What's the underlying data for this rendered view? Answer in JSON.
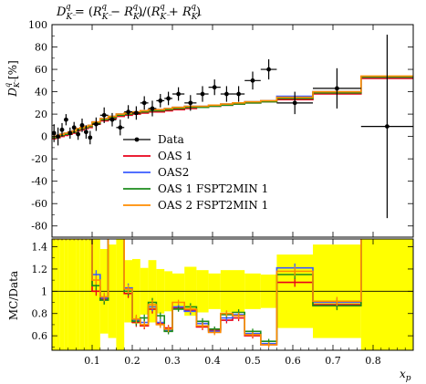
{
  "chart_data": [
    {
      "panel": "main",
      "type": "line",
      "title": "D^q_{K^-} = (R^q_{K^-} − R^q_{K^+}) / (R^q_{K^-} + R^q_{K^+})",
      "title_parts": {
        "lhs": "D",
        "eq": " = (",
        "r1": "R",
        "minus": " − ",
        "r2": "R",
        "mid": ")/(",
        "r3": "R",
        "plus": " + ",
        "r4": "R",
        "end": ")"
      },
      "ylabel": "D^q_{K^-} [%]",
      "ylabel_parts": {
        "base": "D",
        "unit": " [%]"
      },
      "xlim": [
        0.0,
        0.9
      ],
      "ylim": [
        -90,
        100
      ],
      "y_ticks": [
        -80,
        -60,
        -40,
        -20,
        0,
        20,
        40,
        60,
        80,
        100
      ],
      "x_bins": [
        0.0,
        0.01,
        0.02,
        0.03,
        0.04,
        0.05,
        0.06,
        0.07,
        0.08,
        0.09,
        0.1,
        0.12,
        0.14,
        0.16,
        0.18,
        0.2,
        0.22,
        0.24,
        0.26,
        0.28,
        0.3,
        0.33,
        0.36,
        0.39,
        0.42,
        0.45,
        0.48,
        0.52,
        0.56,
        0.65,
        0.77,
        0.9
      ],
      "data": {
        "name": "Data",
        "x": [
          0.005,
          0.015,
          0.025,
          0.035,
          0.045,
          0.055,
          0.065,
          0.075,
          0.085,
          0.095,
          0.11,
          0.13,
          0.15,
          0.17,
          0.19,
          0.21,
          0.23,
          0.25,
          0.27,
          0.29,
          0.315,
          0.345,
          0.375,
          0.405,
          0.435,
          0.465,
          0.5,
          0.54,
          0.605,
          0.71,
          0.835
        ],
        "y": [
          3,
          0,
          6,
          15,
          3,
          8,
          2,
          10,
          4,
          -1,
          11,
          19,
          15,
          8,
          22,
          21,
          30,
          25,
          32,
          34,
          38,
          30,
          38,
          44,
          38,
          38,
          50,
          60,
          30,
          43,
          9
        ],
        "yerr": [
          8,
          8,
          6,
          5,
          5,
          5,
          5,
          6,
          6,
          6,
          6,
          7,
          6,
          7,
          6,
          6,
          6,
          7,
          6,
          6,
          6,
          7,
          7,
          7,
          7,
          7,
          8,
          9,
          10,
          18,
          82
        ]
      },
      "series": [
        {
          "name": "OAS 1",
          "color": "#e8001a",
          "values": [
            -2,
            -1,
            0,
            1,
            2,
            3,
            5,
            6,
            7,
            8,
            11,
            14,
            16,
            18,
            19,
            20,
            21,
            22,
            22,
            23,
            24,
            25,
            26,
            27,
            28,
            29,
            30,
            31,
            33,
            38,
            52
          ]
        },
        {
          "name": "OAS2",
          "color": "#3a5bff",
          "values": [
            0,
            1,
            2,
            3,
            4,
            5,
            7,
            8,
            9,
            10,
            13,
            16,
            18,
            20,
            21,
            22,
            23,
            24,
            24,
            25,
            26,
            27,
            27,
            28,
            29,
            30,
            31,
            32,
            36,
            40,
            53
          ]
        },
        {
          "name": "OAS 1 FSPT2MIN 1",
          "color": "#1c8c1c",
          "values": [
            -1,
            0,
            1,
            2,
            3,
            4,
            6,
            7,
            8,
            9,
            12,
            15,
            17,
            19,
            20,
            21,
            22,
            23,
            23,
            24,
            25,
            26,
            26,
            27,
            28,
            29,
            30,
            31,
            34,
            39,
            53
          ]
        },
        {
          "name": "OAS 2 FSPT2MIN 1",
          "color": "#ff8c00",
          "values": [
            0,
            1,
            2,
            3,
            4,
            5,
            7,
            8,
            9,
            10,
            13,
            16,
            18,
            20,
            21,
            22,
            23,
            24,
            24,
            25,
            26,
            27,
            27,
            28,
            29,
            30,
            31,
            32,
            35,
            40,
            54
          ]
        }
      ],
      "legend_placement": "center-left"
    },
    {
      "panel": "ratio",
      "type": "line",
      "ylabel": "MC/Data",
      "xlabel": "x_p",
      "xlabel_parts": {
        "base": "x",
        "sub": "p"
      },
      "xlim": [
        0.0,
        0.9
      ],
      "ylim": [
        0.47,
        1.47
      ],
      "y_ticks": [
        0.6,
        0.8,
        1.0,
        1.2,
        1.4
      ],
      "y_tick_labels": [
        "0.6",
        "0.8",
        "1",
        "1.2",
        "1.4"
      ],
      "x_ticks": [
        0.1,
        0.2,
        0.3,
        0.4,
        0.5,
        0.6,
        0.7,
        0.8
      ],
      "x_tick_labels": [
        "0.1",
        "0.2",
        "0.3",
        "0.4",
        "0.5",
        "0.6",
        "0.7",
        "0.8"
      ],
      "band_color": "#ffff00",
      "band_halfwidth": [
        2,
        2,
        2,
        2,
        2,
        2,
        2,
        2,
        2,
        2,
        0.6,
        0.38,
        0.42,
        0.85,
        0.28,
        0.29,
        0.21,
        0.28,
        0.2,
        0.18,
        0.16,
        0.22,
        0.19,
        0.16,
        0.19,
        0.19,
        0.16,
        0.15,
        0.33,
        0.42,
        2
      ],
      "series": [
        {
          "name": "OAS 1",
          "color": "#e8001a",
          "values": [
            1.5,
            1.5,
            1.5,
            1.5,
            1.5,
            1.5,
            1.5,
            1.5,
            1.5,
            1.5,
            1.0,
            0.93,
            1.6,
            1.6,
            0.98,
            0.72,
            0.69,
            0.84,
            0.71,
            0.67,
            0.85,
            0.83,
            0.68,
            0.65,
            0.74,
            0.76,
            0.6,
            0.52,
            1.08,
            0.88,
            1.6
          ]
        },
        {
          "name": "OAS2",
          "color": "#3a5bff",
          "values": [
            1.5,
            1.5,
            1.5,
            1.5,
            1.5,
            1.5,
            1.5,
            1.5,
            1.5,
            1.5,
            1.15,
            0.94,
            1.6,
            1.6,
            1.03,
            0.74,
            0.72,
            0.86,
            0.72,
            0.65,
            0.86,
            0.82,
            0.71,
            0.64,
            0.76,
            0.79,
            0.62,
            0.53,
            1.21,
            0.9,
            1.6
          ]
        },
        {
          "name": "OAS 1 FSPT2MIN 1",
          "color": "#1c8c1c",
          "values": [
            1.5,
            1.5,
            1.5,
            1.5,
            1.5,
            1.5,
            1.5,
            1.5,
            1.5,
            1.5,
            1.05,
            0.92,
            1.6,
            1.6,
            1.0,
            0.73,
            0.76,
            0.9,
            0.78,
            0.64,
            0.84,
            0.86,
            0.73,
            0.66,
            0.79,
            0.81,
            0.64,
            0.55,
            1.15,
            0.87,
            1.6
          ]
        },
        {
          "name": "OAS 2 FSPT2MIN 1",
          "color": "#ff8c00",
          "values": [
            1.5,
            1.5,
            1.5,
            1.5,
            1.5,
            1.5,
            1.5,
            1.5,
            1.5,
            1.5,
            1.1,
            0.95,
            1.6,
            1.6,
            1.02,
            0.75,
            0.7,
            0.88,
            0.7,
            0.66,
            0.9,
            0.84,
            0.69,
            0.63,
            0.8,
            0.78,
            0.61,
            0.52,
            1.18,
            0.91,
            1.6
          ]
        }
      ]
    }
  ]
}
